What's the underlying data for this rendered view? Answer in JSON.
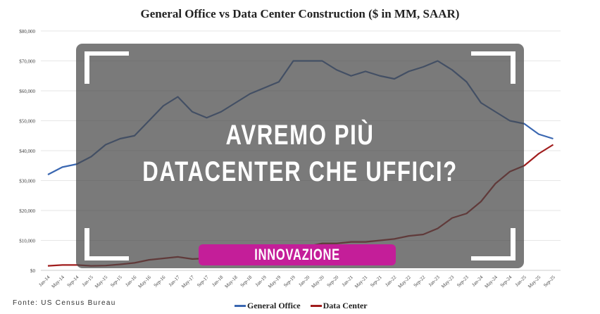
{
  "chart_data": {
    "type": "line",
    "title": "General Office vs Data Center Construction ($ in MM, SAAR)",
    "xlabel": "",
    "ylabel": "",
    "ylim": [
      0,
      80000
    ],
    "y_ticks": [
      "$0",
      "$10,000",
      "$20,000",
      "$30,000",
      "$40,000",
      "$50,000",
      "$60,000",
      "$70,000",
      "$80,000"
    ],
    "grid": true,
    "legend_position": "bottom-center",
    "categories": [
      "Jan-14",
      "May-14",
      "Sep-14",
      "Jan-15",
      "May-15",
      "Sep-15",
      "Jan-16",
      "May-16",
      "Sep-16",
      "Jan-17",
      "May-17",
      "Sep-17",
      "Jan-18",
      "May-18",
      "Sep-18",
      "Jan-19",
      "May-19",
      "Sep-19",
      "Jan-20",
      "May-20",
      "Sep-20",
      "Jan-21",
      "May-21",
      "Sep-21",
      "Jan-22",
      "May-22",
      "Sep-22",
      "Jan-23",
      "May-23",
      "Sep-23",
      "Jan-24",
      "May-24",
      "Sep-24",
      "Jan-25",
      "May-25",
      "Sep-25"
    ],
    "series": [
      {
        "name": "General Office",
        "color": "#3a67b1",
        "values": [
          32000,
          34500,
          35500,
          38000,
          42000,
          44000,
          45000,
          50000,
          55000,
          58000,
          53000,
          51000,
          53000,
          56000,
          59000,
          61000,
          63000,
          70000,
          70000,
          70000,
          67000,
          65000,
          66500,
          65000,
          64000,
          66500,
          68000,
          70000,
          67000,
          63000,
          56000,
          53000,
          50000,
          49000,
          45500,
          44000
        ]
      },
      {
        "name": "Data Center",
        "color": "#a01c1c",
        "values": [
          1500,
          1800,
          1800,
          1500,
          1600,
          2000,
          2500,
          3500,
          4000,
          4500,
          3800,
          4000,
          4500,
          5000,
          5500,
          6000,
          6500,
          7000,
          8000,
          9000,
          9000,
          9500,
          9500,
          10000,
          10500,
          11500,
          12000,
          14000,
          17500,
          19000,
          23000,
          29000,
          33000,
          35000,
          39000,
          42000
        ]
      }
    ]
  },
  "source": "Fonte: US Census Bureau",
  "overlay": {
    "headline_line1": "AVREMO PIÙ",
    "headline_line2": "DATACENTER CHE UFFICI?",
    "tag": "INNOVAZIONE",
    "tag_color": "#c41e99"
  }
}
